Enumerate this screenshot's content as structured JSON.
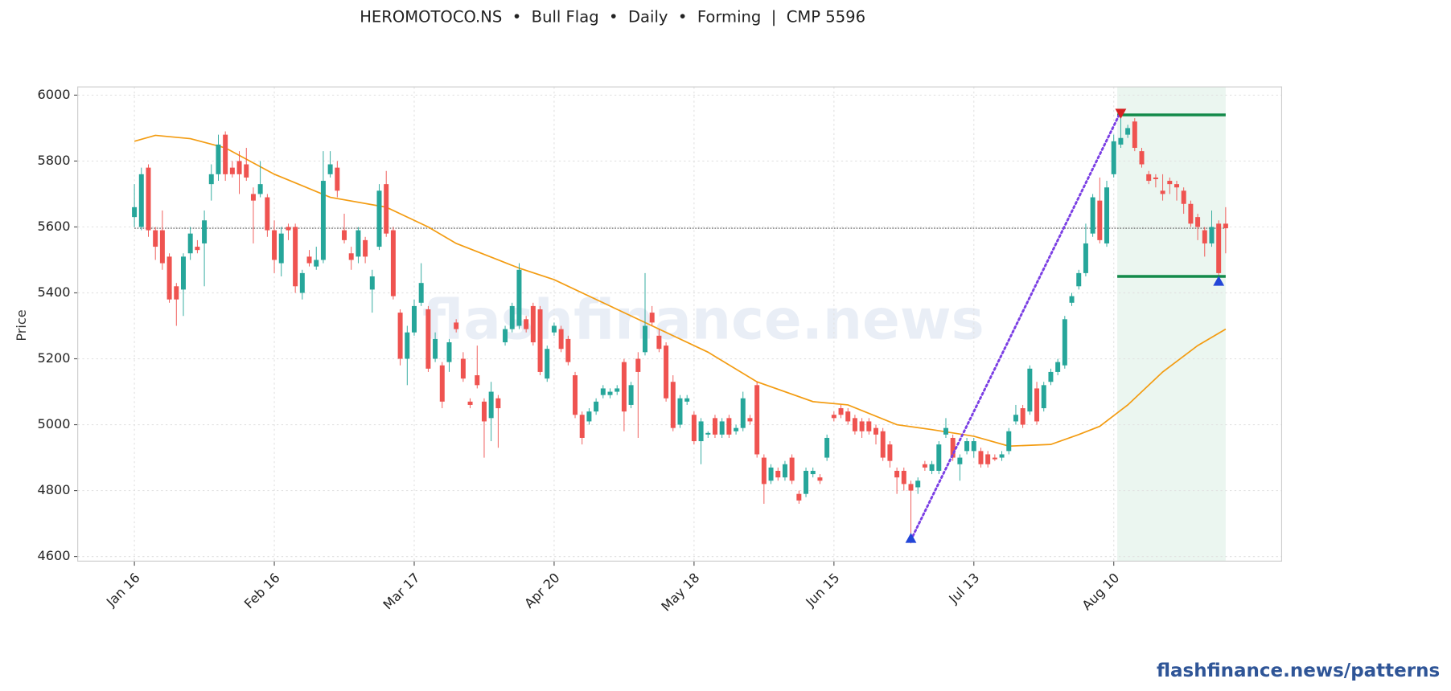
{
  "chart_data": {
    "type": "candlestick",
    "title": "HEROMOTOCO.NS  •  Bull Flag  •  Daily  •  Forming  |  CMP 5596",
    "ylabel": "Price",
    "watermark": "flashfinance.news",
    "footer": "flashfinance.news/patterns",
    "categories": [
      "Jan 16",
      null,
      null,
      null,
      null,
      null,
      null,
      null,
      null,
      null,
      null,
      null,
      null,
      null,
      null,
      null,
      null,
      null,
      null,
      null,
      "Feb 16",
      null,
      null,
      null,
      null,
      null,
      null,
      null,
      null,
      null,
      null,
      null,
      null,
      null,
      null,
      null,
      null,
      null,
      null,
      null,
      "Mar 17",
      null,
      null,
      null,
      null,
      null,
      null,
      null,
      null,
      null,
      null,
      null,
      null,
      null,
      null,
      null,
      null,
      null,
      null,
      null,
      "Apr 20",
      null,
      null,
      null,
      null,
      null,
      null,
      null,
      null,
      null,
      null,
      null,
      null,
      null,
      null,
      null,
      null,
      null,
      null,
      null,
      "May 18",
      null,
      null,
      null,
      null,
      null,
      null,
      null,
      null,
      null,
      null,
      null,
      null,
      null,
      null,
      null,
      null,
      null,
      null,
      null,
      "Jun 15",
      null,
      null,
      null,
      null,
      null,
      null,
      null,
      null,
      null,
      null,
      null,
      null,
      null,
      null,
      null,
      null,
      null,
      null,
      null,
      "Jul 13",
      null,
      null,
      null,
      null,
      null,
      null,
      null,
      null,
      null,
      null,
      null,
      null,
      null,
      null,
      null,
      null,
      null,
      null,
      null,
      "Aug 10",
      null,
      null,
      null,
      null,
      null,
      null,
      null,
      null,
      null,
      null,
      null,
      null,
      null,
      null,
      null,
      null
    ],
    "open": [
      5630,
      5600,
      5780,
      5590,
      5590,
      5510,
      5420,
      5410,
      5520,
      5540,
      5550,
      5730,
      5760,
      5880,
      5780,
      5800,
      5790,
      5700,
      5700,
      5690,
      5590,
      5490,
      5600,
      5600,
      5400,
      5510,
      5480,
      5500,
      5760,
      5780,
      5590,
      5520,
      5510,
      5560,
      5410,
      5540,
      5730,
      5590,
      5340,
      5200,
      5280,
      5370,
      5350,
      5200,
      5180,
      5190,
      5310,
      5200,
      5070,
      5150,
      5070,
      5020,
      5080,
      5250,
      5290,
      5300,
      5320,
      5360,
      5350,
      5140,
      5280,
      5290,
      5260,
      5150,
      5030,
      5010,
      5040,
      5090,
      5090,
      5100,
      5190,
      5060,
      5200,
      5220,
      5340,
      5270,
      5240,
      5130,
      5000,
      5070,
      5030,
      4950,
      4970,
      5020,
      4970,
      5020,
      4980,
      4990,
      5020,
      5120,
      4900,
      4830,
      4860,
      4840,
      4900,
      4790,
      4790,
      4850,
      4840,
      4900,
      5030,
      5050,
      5040,
      5020,
      5010,
      5010,
      4990,
      4980,
      4940,
      4860,
      4860,
      4820,
      4810,
      4880,
      4860,
      4860,
      4970,
      4960,
      4880,
      4920,
      4920,
      4920,
      4910,
      4900,
      4900,
      4920,
      5010,
      5050,
      5040,
      5110,
      5050,
      5130,
      5160,
      5180,
      5370,
      5420,
      5460,
      5580,
      5680,
      5550,
      5760,
      5850,
      5880,
      5920,
      5830,
      5760,
      5750,
      5710,
      5740,
      5730,
      5710,
      5670,
      5630,
      5590,
      5550,
      5610,
      5610
    ],
    "high": [
      5730,
      5780,
      5790,
      5600,
      5650,
      5520,
      5430,
      5520,
      5600,
      5560,
      5650,
      5790,
      5880,
      5890,
      5800,
      5830,
      5840,
      5720,
      5800,
      5700,
      5620,
      5600,
      5610,
      5610,
      5470,
      5530,
      5540,
      5830,
      5830,
      5800,
      5640,
      5540,
      5600,
      5570,
      5470,
      5730,
      5770,
      5600,
      5350,
      5300,
      5380,
      5490,
      5360,
      5280,
      5190,
      5260,
      5320,
      5220,
      5080,
      5240,
      5080,
      5130,
      5090,
      5300,
      5370,
      5490,
      5330,
      5370,
      5360,
      5240,
      5310,
      5300,
      5270,
      5160,
      5040,
      5050,
      5080,
      5120,
      5110,
      5120,
      5200,
      5130,
      5220,
      5460,
      5360,
      5290,
      5250,
      5150,
      5090,
      5090,
      5040,
      5020,
      4980,
      5030,
      5020,
      5030,
      5000,
      5100,
      5030,
      5130,
      4910,
      4880,
      4870,
      4890,
      4910,
      4800,
      4870,
      4870,
      4850,
      4970,
      5040,
      5060,
      5050,
      5030,
      5020,
      5020,
      5000,
      4990,
      4950,
      4870,
      4870,
      4830,
      4840,
      4890,
      4890,
      4950,
      5020,
      4970,
      4910,
      4960,
      4960,
      4930,
      4920,
      4910,
      4920,
      4990,
      5060,
      5060,
      5180,
      5130,
      5130,
      5170,
      5200,
      5330,
      5400,
      5470,
      5610,
      5700,
      5750,
      5740,
      5880,
      5950,
      5910,
      5930,
      5840,
      5770,
      5760,
      5760,
      5750,
      5740,
      5720,
      5680,
      5640,
      5600,
      5650,
      5620,
      5660
    ],
    "low": [
      5600,
      5590,
      5570,
      5500,
      5470,
      5370,
      5300,
      5330,
      5500,
      5520,
      5420,
      5680,
      5740,
      5740,
      5750,
      5700,
      5740,
      5550,
      5690,
      5570,
      5460,
      5450,
      5560,
      5400,
      5380,
      5480,
      5470,
      5490,
      5750,
      5690,
      5550,
      5470,
      5490,
      5490,
      5340,
      5530,
      5570,
      5380,
      5180,
      5120,
      5270,
      5360,
      5160,
      5190,
      5050,
      5160,
      5280,
      5130,
      5050,
      5110,
      4900,
      4950,
      4930,
      5240,
      5280,
      5290,
      5280,
      5240,
      5150,
      5130,
      5270,
      5220,
      5180,
      5020,
      4940,
      5000,
      5030,
      5080,
      5080,
      5090,
      4980,
      5050,
      4960,
      5210,
      5300,
      5220,
      5070,
      4980,
      4990,
      5060,
      4940,
      4880,
      4960,
      4960,
      4960,
      4960,
      4970,
      4980,
      5000,
      4900,
      4760,
      4820,
      4830,
      4830,
      4820,
      4760,
      4780,
      4840,
      4820,
      4890,
      5010,
      5020,
      5000,
      4970,
      4960,
      4970,
      4940,
      4890,
      4870,
      4790,
      4800,
      4640,
      4790,
      4860,
      4850,
      4850,
      4960,
      4890,
      4830,
      4910,
      4900,
      4870,
      4870,
      4890,
      4890,
      4910,
      5000,
      4990,
      5030,
      5000,
      5040,
      5120,
      5150,
      5170,
      5360,
      5410,
      5450,
      5570,
      5550,
      5540,
      5750,
      5840,
      5870,
      5830,
      5780,
      5730,
      5720,
      5680,
      5700,
      5680,
      5640,
      5600,
      5560,
      5510,
      5540,
      5440,
      5520
    ],
    "close": [
      5660,
      5760,
      5590,
      5540,
      5490,
      5380,
      5380,
      5510,
      5580,
      5530,
      5620,
      5760,
      5850,
      5760,
      5760,
      5760,
      5750,
      5680,
      5730,
      5590,
      5500,
      5580,
      5590,
      5420,
      5460,
      5490,
      5500,
      5740,
      5790,
      5710,
      5560,
      5500,
      5590,
      5510,
      5450,
      5710,
      5580,
      5390,
      5200,
      5280,
      5360,
      5430,
      5170,
      5260,
      5070,
      5250,
      5290,
      5140,
      5060,
      5120,
      5010,
      5100,
      5050,
      5290,
      5360,
      5470,
      5290,
      5250,
      5160,
      5230,
      5300,
      5230,
      5190,
      5030,
      4960,
      5040,
      5070,
      5110,
      5100,
      5110,
      5040,
      5120,
      5160,
      5300,
      5310,
      5230,
      5080,
      4990,
      5080,
      5080,
      4950,
      5010,
      4975,
      4970,
      5010,
      4970,
      4990,
      5080,
      5010,
      4910,
      4820,
      4870,
      4840,
      4880,
      4830,
      4770,
      4860,
      4860,
      4830,
      4960,
      5020,
      5030,
      5010,
      4980,
      4980,
      4980,
      4970,
      4900,
      4890,
      4840,
      4820,
      4800,
      4830,
      4870,
      4880,
      4940,
      4990,
      4900,
      4900,
      4950,
      4950,
      4880,
      4880,
      4895,
      4910,
      4980,
      5030,
      5000,
      5170,
      5010,
      5120,
      5160,
      5190,
      5320,
      5390,
      5460,
      5550,
      5690,
      5560,
      5720,
      5860,
      5870,
      5900,
      5840,
      5790,
      5740,
      5745,
      5700,
      5730,
      5720,
      5670,
      5610,
      5600,
      5550,
      5600,
      5460,
      5596
    ],
    "up_color": "#26a69a",
    "down_color": "#ef5350",
    "xlim": [
      -8.1,
      164
    ],
    "ylim": [
      4586,
      6025
    ],
    "yticks": [
      4600,
      4800,
      5000,
      5200,
      5400,
      5600,
      5800,
      6000
    ],
    "grid": true,
    "overlays": {
      "moving_average": {
        "color": "#f39c12",
        "x": [
          0,
          3,
          8,
          13,
          20,
          28,
          36,
          42,
          46,
          52,
          55,
          60,
          68,
          74,
          82,
          89,
          97,
          102,
          109,
          114,
          120,
          125,
          131,
          135,
          138,
          142,
          147,
          152,
          156
        ],
        "values": [
          5860,
          5878,
          5868,
          5840,
          5760,
          5690,
          5660,
          5600,
          5550,
          5500,
          5475,
          5440,
          5360,
          5300,
          5220,
          5130,
          5070,
          5060,
          5000,
          4985,
          4965,
          4935,
          4940,
          4970,
          4995,
          5060,
          5160,
          5240,
          5290
        ]
      },
      "cmp_line": {
        "value": 5596,
        "color": "#555555"
      },
      "trend_line": {
        "color": "#7b3fe4",
        "x": [
          111,
          141
        ],
        "values": [
          4650,
          5950
        ]
      },
      "levels": [
        {
          "value": 5940,
          "x": [
            140.5,
            156
          ],
          "color": "#138a4a"
        },
        {
          "value": 5450,
          "x": [
            140.5,
            156
          ],
          "color": "#138a4a"
        }
      ],
      "zone": {
        "x": [
          140.5,
          156
        ],
        "color": "#e6f4ec"
      },
      "markers": [
        {
          "x": 111,
          "value": 4655,
          "shape": "up",
          "color": "#2346d8"
        },
        {
          "x": 141,
          "value": 5945,
          "shape": "down",
          "color": "#d62020"
        },
        {
          "x": 155,
          "value": 5435,
          "shape": "up",
          "color": "#2346d8"
        }
      ]
    }
  }
}
